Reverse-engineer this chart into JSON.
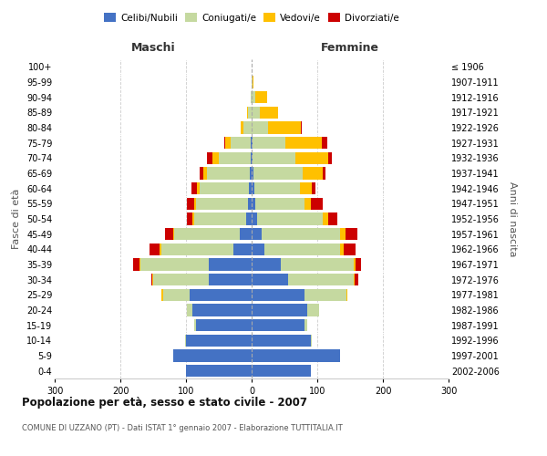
{
  "age_groups": [
    "0-4",
    "5-9",
    "10-14",
    "15-19",
    "20-24",
    "25-29",
    "30-34",
    "35-39",
    "40-44",
    "45-49",
    "50-54",
    "55-59",
    "60-64",
    "65-69",
    "70-74",
    "75-79",
    "80-84",
    "85-89",
    "90-94",
    "95-99",
    "100+"
  ],
  "birth_years": [
    "2002-2006",
    "1997-2001",
    "1992-1996",
    "1987-1991",
    "1982-1986",
    "1977-1981",
    "1972-1976",
    "1967-1971",
    "1962-1966",
    "1957-1961",
    "1952-1956",
    "1947-1951",
    "1942-1946",
    "1937-1941",
    "1932-1936",
    "1927-1931",
    "1922-1926",
    "1917-1921",
    "1912-1916",
    "1907-1911",
    "≤ 1906"
  ],
  "maschi": {
    "celibi": [
      100,
      120,
      100,
      85,
      90,
      95,
      65,
      65,
      28,
      18,
      8,
      5,
      4,
      3,
      2,
      2,
      0,
      0,
      0,
      0,
      0
    ],
    "coniugati": [
      0,
      0,
      1,
      2,
      8,
      40,
      85,
      105,
      110,
      100,
      80,
      80,
      75,
      65,
      48,
      30,
      12,
      5,
      2,
      0,
      0
    ],
    "vedovi": [
      0,
      0,
      0,
      0,
      0,
      2,
      1,
      1,
      2,
      2,
      2,
      3,
      4,
      5,
      10,
      8,
      5,
      2,
      0,
      0,
      0
    ],
    "divorziati": [
      0,
      0,
      0,
      0,
      0,
      1,
      2,
      10,
      15,
      12,
      8,
      10,
      8,
      6,
      8,
      2,
      0,
      0,
      0,
      0,
      0
    ]
  },
  "femmine": {
    "nubili": [
      90,
      135,
      90,
      80,
      85,
      80,
      55,
      45,
      20,
      15,
      8,
      5,
      4,
      3,
      2,
      2,
      0,
      0,
      0,
      0,
      0
    ],
    "coniugate": [
      0,
      0,
      2,
      5,
      18,
      65,
      100,
      110,
      115,
      120,
      100,
      75,
      70,
      75,
      65,
      50,
      25,
      12,
      5,
      1,
      0
    ],
    "vedove": [
      0,
      0,
      0,
      0,
      0,
      1,
      2,
      3,
      5,
      8,
      8,
      10,
      18,
      30,
      50,
      55,
      50,
      28,
      18,
      2,
      0
    ],
    "divorziate": [
      0,
      0,
      0,
      0,
      0,
      0,
      5,
      8,
      18,
      18,
      15,
      18,
      5,
      5,
      5,
      8,
      2,
      0,
      0,
      0,
      0
    ]
  },
  "colors": {
    "celibi": "#4472c4",
    "coniugati": "#c5d9a0",
    "vedovi": "#ffc000",
    "divorziati": "#cc0000"
  },
  "title": "Popolazione per età, sesso e stato civile - 2007",
  "subtitle": "COMUNE DI UZZANO (PT) - Dati ISTAT 1° gennaio 2007 - Elaborazione TUTTITALIA.IT",
  "label_maschi": "Maschi",
  "label_femmine": "Femmine",
  "ylabel_left": "Fasce di età",
  "ylabel_right": "Anni di nascita",
  "xlim": 300,
  "bg_color": "#ffffff",
  "legend_labels": [
    "Celibi/Nubili",
    "Coniugati/e",
    "Vedovi/e",
    "Divorziati/e"
  ]
}
